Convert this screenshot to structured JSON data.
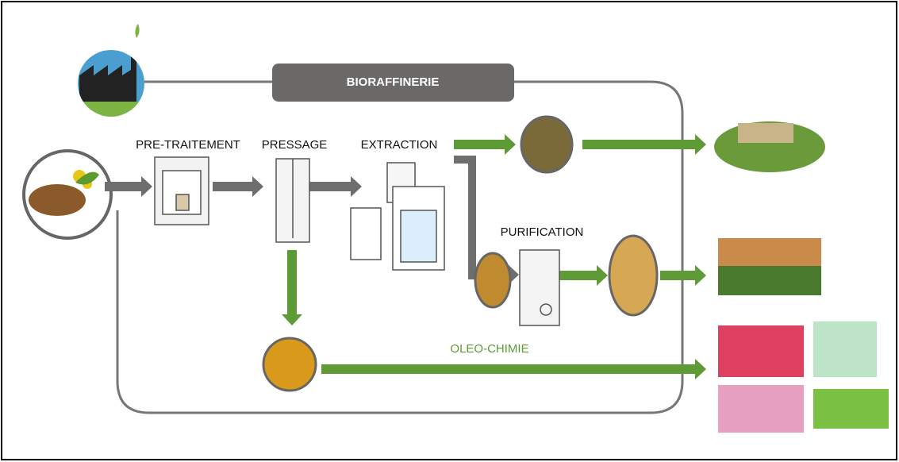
{
  "header": {
    "title": "BIORAFFINERIE"
  },
  "steps": [
    {
      "label": "PRE-TRAITEMENT"
    },
    {
      "label": "PRESSAGE"
    },
    {
      "label": "EXTRACTION"
    },
    {
      "label": "PURIFICATION"
    }
  ],
  "flows": [
    {
      "label": "OLEO-CHIMIE"
    }
  ]
}
